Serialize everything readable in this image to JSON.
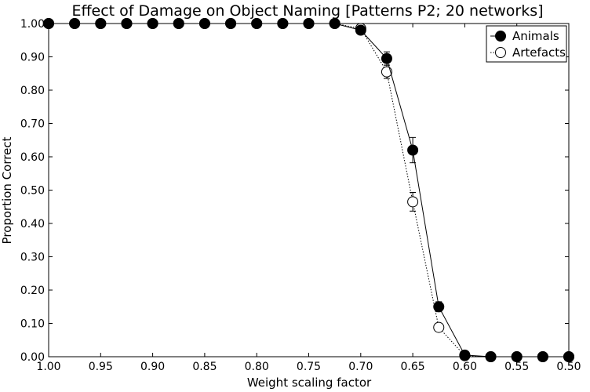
{
  "chart_data": {
    "type": "line",
    "title": "Effect of Damage on Object Naming [Patterns P2; 20 networks]",
    "xlabel": "Weight scaling factor",
    "ylabel": "Proportion Correct",
    "xlim": [
      1.0,
      0.5
    ],
    "ylim": [
      0.0,
      1.0
    ],
    "x_reversed": true,
    "grid": false,
    "legend_position": "top-right",
    "x_ticks": [
      "1.00",
      "0.95",
      "0.90",
      "0.85",
      "0.80",
      "0.75",
      "0.70",
      "0.65",
      "0.60",
      "0.55",
      "0.50"
    ],
    "x_tick_values": [
      1.0,
      0.95,
      0.9,
      0.85,
      0.8,
      0.75,
      0.7,
      0.65,
      0.6,
      0.55,
      0.5
    ],
    "y_ticks": [
      "0.00",
      "0.10",
      "0.20",
      "0.30",
      "0.40",
      "0.50",
      "0.60",
      "0.70",
      "0.80",
      "0.90",
      "1.00"
    ],
    "y_tick_values": [
      0,
      0.1,
      0.2,
      0.3,
      0.4,
      0.5,
      0.6,
      0.7,
      0.8,
      0.9,
      1.0
    ],
    "x": [
      1.0,
      0.975,
      0.95,
      0.925,
      0.9,
      0.875,
      0.85,
      0.825,
      0.8,
      0.775,
      0.75,
      0.725,
      0.7,
      0.675,
      0.65,
      0.625,
      0.6,
      0.575,
      0.55,
      0.525,
      0.5
    ],
    "series": [
      {
        "name": "Animals",
        "marker": "filled-circle",
        "line_style": "solid",
        "values": [
          1.0,
          1.0,
          1.0,
          1.0,
          1.0,
          1.0,
          1.0,
          1.0,
          1.0,
          1.0,
          1.0,
          1.0,
          0.98,
          0.895,
          0.62,
          0.15,
          0.005,
          0.0,
          0.0,
          0.0,
          0.0
        ],
        "errors": [
          0,
          0,
          0,
          0,
          0,
          0,
          0,
          0,
          0,
          0,
          0,
          0,
          0.005,
          0.02,
          0.038,
          0.015,
          0.003,
          0,
          0,
          0,
          0
        ]
      },
      {
        "name": "Artefacts",
        "marker": "open-circle",
        "line_style": "dotted",
        "values": [
          1.0,
          1.0,
          1.0,
          1.0,
          1.0,
          1.0,
          1.0,
          1.0,
          1.0,
          1.0,
          1.0,
          1.0,
          0.985,
          0.855,
          0.465,
          0.088,
          0.003,
          0.0,
          0.0,
          0.0,
          0.0
        ],
        "errors": [
          0,
          0,
          0,
          0,
          0,
          0,
          0,
          0,
          0,
          0,
          0,
          0,
          0.004,
          0.02,
          0.028,
          0.01,
          0.002,
          0,
          0,
          0,
          0
        ]
      }
    ]
  }
}
